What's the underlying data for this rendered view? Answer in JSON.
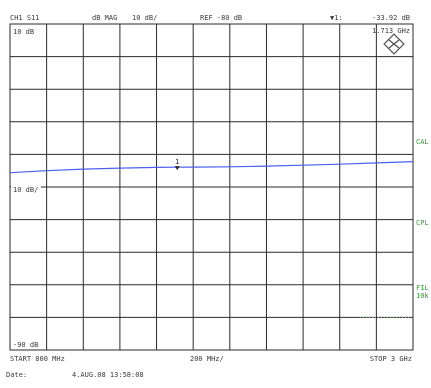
{
  "header": {
    "channel": "CH1 S11",
    "format": "dB  MAG",
    "scale": "10 dB/",
    "ref": "REF -80 dB",
    "marker_symbol": "▼1:",
    "marker_value": "-33.92 dB",
    "marker_freq": "1.713 GHz"
  },
  "footer": {
    "start": "START  800 MHz",
    "span": "200 MHz/",
    "stop": "STOP 3 GHz",
    "date_label": "Date:",
    "date_value": "4.AUG.08  13:58:08"
  },
  "side_labels": {
    "cal": "CAL",
    "cpl": "CPL",
    "fil": "FIL",
    "fil_sub": "10k"
  },
  "colors": {
    "trace": "#4a5ff0",
    "grid": "#2a2a2a",
    "side": "#1ea81e",
    "text": "#3a3a3a"
  },
  "chart_data": {
    "type": "line",
    "title": "",
    "xlabel": "",
    "ylabel": "",
    "xlim": [
      0.8,
      3.0
    ],
    "ylim": [
      -90,
      10
    ],
    "x_unit": "GHz",
    "y_unit": "dB",
    "grid": true,
    "y_tick_labels": [
      {
        "value": 10,
        "label": "10 dB"
      },
      {
        "value": -40,
        "label": "10 dB/"
      },
      {
        "value": -90,
        "label": "-90 dB"
      }
    ],
    "series": [
      {
        "x": [
          0.8,
          1.0,
          1.2,
          1.4,
          1.6,
          1.713,
          1.8,
          2.0,
          2.2,
          2.4,
          2.6,
          2.8,
          3.0
        ],
        "y": [
          -35.6,
          -35.0,
          -34.5,
          -34.2,
          -34.0,
          -33.92,
          -33.9,
          -33.8,
          -33.6,
          -33.3,
          -33.0,
          -32.6,
          -32.2
        ]
      }
    ],
    "markers": [
      {
        "label": "1",
        "x": 1.713,
        "y": -33.92
      }
    ]
  }
}
